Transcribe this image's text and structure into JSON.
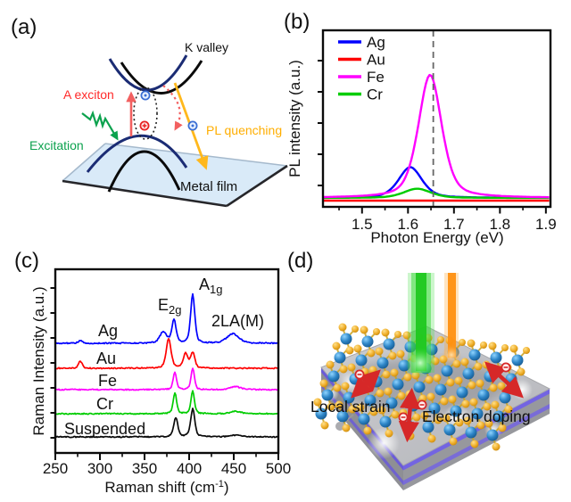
{
  "figure": {
    "background": "#FFFFFF"
  },
  "panels": {
    "a": {
      "label": "(a)",
      "k_valley": "K valley",
      "a_exciton": "A exciton",
      "excitation": "Excitation",
      "pl_quenching": "PL quenching",
      "metal_film": "Metal film",
      "colors": {
        "band_navy": "#1B2C74",
        "band_black": "#0A0A0A",
        "exciton_arrow": "#F26060",
        "exciton_text": "#FF2A2A",
        "excitation_green": "#0CA24E",
        "quench_orange": "#FFB81C",
        "film_fill": "#D9EAF8",
        "electron_blue": "#3B6FD4",
        "hole_red": "#E82222"
      }
    },
    "b": {
      "label": "(b)",
      "xlabel": "Photon Energy (eV)",
      "ylabel": "PL intensity (a.u.)"
    },
    "c": {
      "label": "(c)",
      "ylabel": "Raman Intensity (a.u.)",
      "xlabel_pre": "Raman shift (cm",
      "xlabel_sup": "-1",
      "xlabel_post": ")",
      "peak_label_e2g_main": "E",
      "peak_label_e2g_sub": "2g",
      "peak_label_a1g_main": "A",
      "peak_label_a1g_sub": "1g",
      "peak_label_2lam": "2LA(M)"
    },
    "d": {
      "label": "(d)",
      "local_strain": "Local strain",
      "electron_doping": "Electron doping",
      "colors": {
        "beam_green": "#2ED02E",
        "beam_orange": "#FF9518",
        "substrate_top": "#C6C7CB",
        "substrate_side": "#8E8F94",
        "substrate_purple": "#6A5BD8",
        "atom_blue": "#1E6FAE",
        "atom_yellow": "#E8A61C",
        "arrow_red": "#D62828"
      }
    }
  },
  "chart_data": [
    {
      "id": "pl-spectra",
      "type": "line",
      "xlabel": "Photon Energy (eV)",
      "ylabel": "PL intensity (a.u.)",
      "xlim": [
        1.415,
        1.91
      ],
      "xticks": [
        1.5,
        1.6,
        1.7,
        1.8,
        1.9
      ],
      "xticks_minor": [
        1.45,
        1.55,
        1.65,
        1.75,
        1.85
      ],
      "y_axis_arbitrary_units": true,
      "dashed_guide_x": 1.655,
      "legend_position": "top-left",
      "series": [
        {
          "name": "Ag",
          "color": "#0000FE",
          "peak_center_eV": 1.605,
          "amplitude_rel": 0.25,
          "fwhm_eV": 0.06
        },
        {
          "name": "Au",
          "color": "#FE0000",
          "peak_center_eV": 1.62,
          "amplitude_rel": 0.0,
          "fwhm_eV": 0.06
        },
        {
          "name": "Fe",
          "color": "#FF00FF",
          "peak_center_eV": 1.648,
          "amplitude_rel": 1.0,
          "fwhm_eV": 0.06
        },
        {
          "name": "Cr",
          "color": "#00CC00",
          "peak_center_eV": 1.62,
          "amplitude_rel": 0.075,
          "fwhm_eV": 0.07
        }
      ]
    },
    {
      "id": "raman-spectra",
      "type": "line",
      "stacked": true,
      "xlabel": "Raman shift (cm-1)",
      "ylabel": "Raman Intensity (a.u.)",
      "xlim": [
        250,
        500
      ],
      "xticks": [
        250,
        300,
        350,
        400,
        450,
        500
      ],
      "xticks_minor": [
        275,
        325,
        375,
        425,
        475
      ],
      "peak_annotations": [
        {
          "label": "E2g",
          "x": 383
        },
        {
          "label": "A1g",
          "x": 404
        },
        {
          "label": "2LA(M)",
          "x": 449
        }
      ],
      "series": [
        {
          "name": "Ag",
          "color": "#0000FE",
          "stack_level": 4,
          "peaks": [
            {
              "center": 278,
              "amp": 0.1,
              "fwhm": 5
            },
            {
              "center": 371,
              "amp": 0.38,
              "fwhm": 9
            },
            {
              "center": 383,
              "amp": 0.8,
              "fwhm": 5.5
            },
            {
              "center": 404,
              "amp": 1.65,
              "fwhm": 5.5
            },
            {
              "center": 449,
              "amp": 0.32,
              "fwhm": 16
            }
          ]
        },
        {
          "name": "Au",
          "color": "#FE0000",
          "stack_level": 3,
          "peaks": [
            {
              "center": 278,
              "amp": 0.25,
              "fwhm": 5
            },
            {
              "center": 377,
              "amp": 1.0,
              "fwhm": 6.5
            },
            {
              "center": 396,
              "amp": 0.5,
              "fwhm": 6
            },
            {
              "center": 404,
              "amp": 0.52,
              "fwhm": 5.5
            }
          ]
        },
        {
          "name": "Fe",
          "color": "#FF00FF",
          "stack_level": 2,
          "peaks": [
            {
              "center": 384,
              "amp": 0.6,
              "fwhm": 4.5
            },
            {
              "center": 404,
              "amp": 0.72,
              "fwhm": 4.5
            },
            {
              "center": 452,
              "amp": 0.1,
              "fwhm": 14
            }
          ]
        },
        {
          "name": "Cr",
          "color": "#00CC00",
          "stack_level": 1,
          "peaks": [
            {
              "center": 384,
              "amp": 0.72,
              "fwhm": 4.5
            },
            {
              "center": 404,
              "amp": 0.78,
              "fwhm": 4.5
            },
            {
              "center": 452,
              "amp": 0.08,
              "fwhm": 14
            }
          ]
        },
        {
          "name": "Suspended",
          "color": "#0A0A0A",
          "stack_level": 0,
          "peaks": [
            {
              "center": 385,
              "amp": 0.65,
              "fwhm": 5.5
            },
            {
              "center": 404,
              "amp": 0.95,
              "fwhm": 5.5
            },
            {
              "center": 452,
              "amp": 0.06,
              "fwhm": 14
            }
          ]
        }
      ]
    }
  ]
}
